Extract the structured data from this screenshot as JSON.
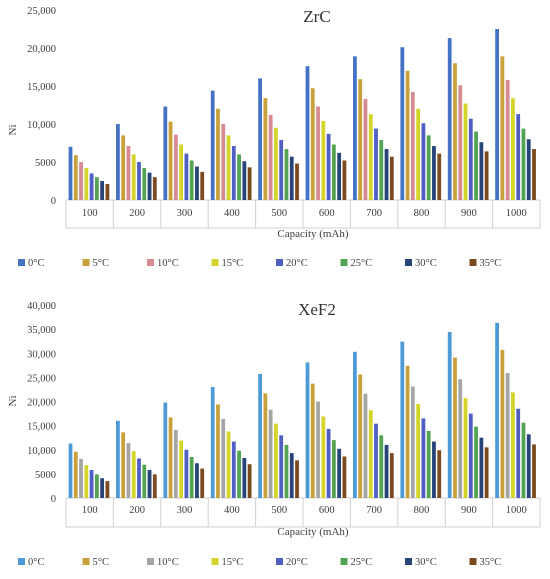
{
  "chart_data": [
    {
      "type": "bar",
      "title": "ZrC",
      "xlabel": "Capacity (mAh)",
      "ylabel": "Ni",
      "ylim": [
        0,
        25000
      ],
      "yticks": [
        "0",
        "5000",
        "10,000",
        "15,000",
        "20,000",
        "25,000"
      ],
      "grid": false,
      "legend": "bottom",
      "categories": [
        "100",
        "200",
        "300",
        "400",
        "500",
        "600",
        "700",
        "800",
        "900",
        "1000"
      ],
      "series": [
        {
          "name": "0°C",
          "color": "#4472c4",
          "values": [
            7000,
            10000,
            12300,
            14400,
            16000,
            17600,
            18900,
            20100,
            21300,
            22500
          ]
        },
        {
          "name": "5°C",
          "color": "#c9a13b",
          "values": [
            5900,
            8500,
            10300,
            12000,
            13400,
            14700,
            15900,
            17000,
            18000,
            18900
          ]
        },
        {
          "name": "10°C",
          "color": "#d88a92",
          "values": [
            5000,
            7100,
            8600,
            10000,
            11200,
            12300,
            13300,
            14200,
            15100,
            15800
          ]
        },
        {
          "name": "15°C",
          "color": "#d4d42a",
          "values": [
            4200,
            6000,
            7300,
            8500,
            9500,
            10400,
            11300,
            12000,
            12700,
            13400
          ]
        },
        {
          "name": "20°C",
          "color": "#4f5fc4",
          "values": [
            3500,
            5000,
            6100,
            7100,
            7900,
            8700,
            9400,
            10100,
            10700,
            11300
          ]
        },
        {
          "name": "25°C",
          "color": "#52a353",
          "values": [
            3000,
            4200,
            5200,
            6000,
            6700,
            7300,
            7900,
            8500,
            9000,
            9400
          ]
        },
        {
          "name": "30°C",
          "color": "#264478",
          "values": [
            2500,
            3600,
            4400,
            5100,
            5700,
            6200,
            6700,
            7100,
            7600,
            8000
          ]
        },
        {
          "name": "35°C",
          "color": "#7b4a1e",
          "values": [
            2100,
            3000,
            3700,
            4300,
            4800,
            5200,
            5700,
            6100,
            6400,
            6700
          ]
        }
      ]
    },
    {
      "type": "bar",
      "title": "XeF2",
      "xlabel": "Capacity (mAh)",
      "ylabel": "Ni",
      "ylim": [
        0,
        40000
      ],
      "yticks": [
        "0",
        "5000",
        "10,000",
        "15,000",
        "20,000",
        "25,000",
        "30,000",
        "35,000",
        "40,000"
      ],
      "grid": false,
      "legend": "bottom",
      "categories": [
        "100",
        "200",
        "300",
        "400",
        "500",
        "600",
        "700",
        "800",
        "900",
        "1000"
      ],
      "series": [
        {
          "name": "0°C",
          "color": "#4d9bd6",
          "values": [
            11300,
            16000,
            19800,
            23000,
            25700,
            28100,
            30300,
            32400,
            34400,
            36300
          ]
        },
        {
          "name": "5°C",
          "color": "#c9a13b",
          "values": [
            9600,
            13600,
            16700,
            19400,
            21700,
            23700,
            25600,
            27400,
            29100,
            30700
          ]
        },
        {
          "name": "10°C",
          "color": "#a5a5a5",
          "values": [
            8100,
            11400,
            14100,
            16400,
            18300,
            20000,
            21600,
            23100,
            24600,
            25900
          ]
        },
        {
          "name": "15°C",
          "color": "#d4d42a",
          "values": [
            6800,
            9700,
            11900,
            13800,
            15400,
            16900,
            18200,
            19500,
            20700,
            21900
          ]
        },
        {
          "name": "20°C",
          "color": "#4f5fc4",
          "values": [
            5800,
            8200,
            10000,
            11700,
            13000,
            14300,
            15400,
            16500,
            17500,
            18500
          ]
        },
        {
          "name": "25°C",
          "color": "#52a353",
          "values": [
            4900,
            6900,
            8500,
            9800,
            11000,
            12000,
            13000,
            13900,
            14800,
            15600
          ]
        },
        {
          "name": "30°C",
          "color": "#264478",
          "values": [
            4100,
            5800,
            7200,
            8300,
            9300,
            10200,
            11000,
            11700,
            12500,
            13200
          ]
        },
        {
          "name": "35°C",
          "color": "#7b4a1e",
          "values": [
            3500,
            4900,
            6100,
            7000,
            7800,
            8600,
            9300,
            9900,
            10500,
            11100
          ]
        }
      ]
    }
  ]
}
